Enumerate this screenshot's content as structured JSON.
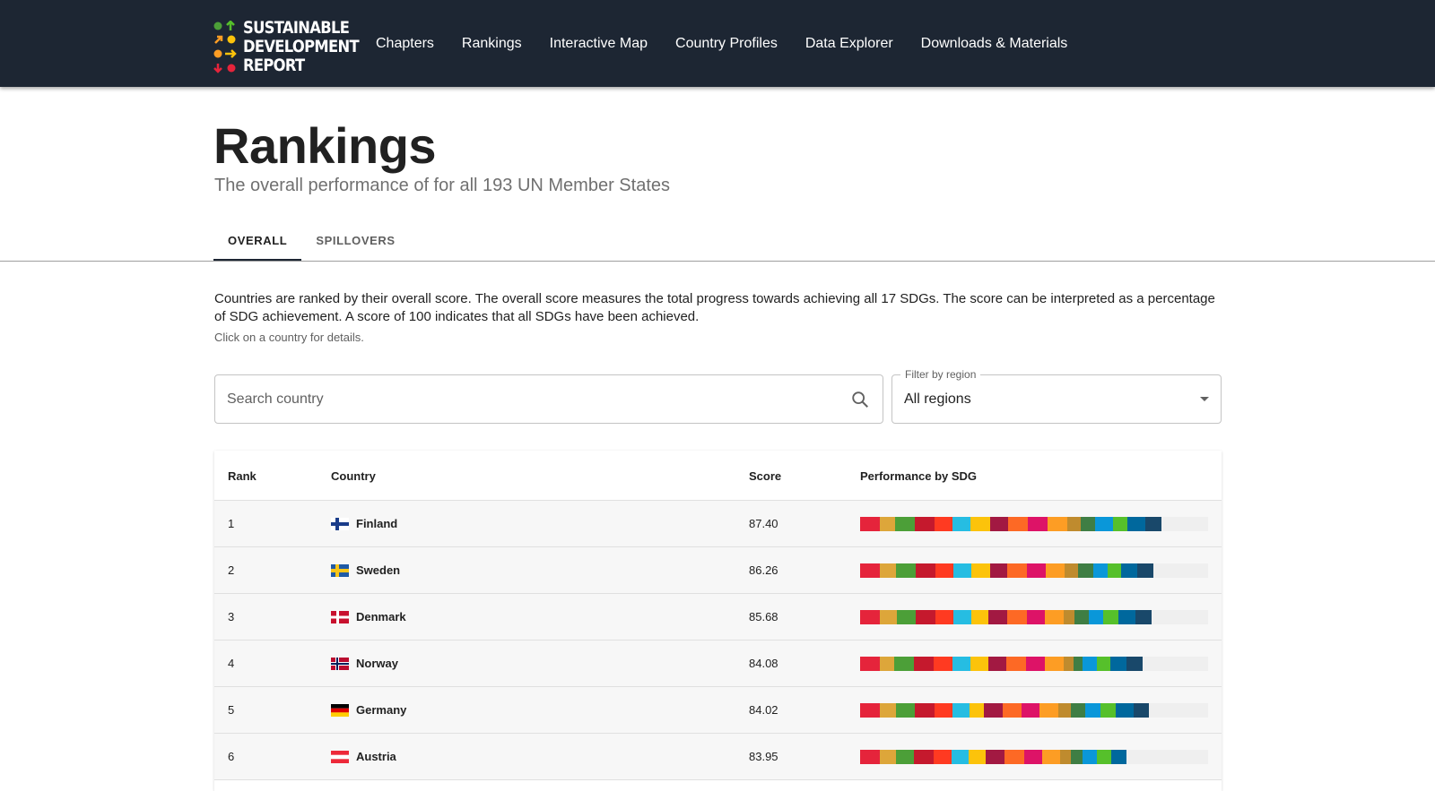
{
  "header": {
    "logo": {
      "line1": "SUSTAINABLE",
      "line2": "DEVELOPMENT",
      "line3": "REPORT"
    },
    "nav": [
      "Chapters",
      "Rankings",
      "Interactive Map",
      "Country Profiles",
      "Data Explorer",
      "Downloads & Materials"
    ]
  },
  "page": {
    "title": "Rankings",
    "subtitle": "The overall performance of for all 193 UN Member States"
  },
  "tabs": [
    {
      "label": "OVERALL",
      "active": true
    },
    {
      "label": "SPILLOVERS",
      "active": false
    }
  ],
  "description": "Countries are ranked by their overall score. The overall score measures the total progress towards achieving all 17 SDGs. The score can be interpreted as a percentage of SDG achievement. A score of 100 indicates that all SDGs have been achieved.",
  "hint": "Click on a country for details.",
  "search": {
    "placeholder": "Search country"
  },
  "filter": {
    "label": "Filter by region",
    "value": "All regions"
  },
  "table": {
    "headers": {
      "rank": "Rank",
      "country": "Country",
      "score": "Score",
      "performance": "Performance by SDG"
    },
    "rows": [
      {
        "rank": "1",
        "country": "Finland",
        "score": "87.40"
      },
      {
        "rank": "2",
        "country": "Sweden",
        "score": "86.26"
      },
      {
        "rank": "3",
        "country": "Denmark",
        "score": "85.68"
      },
      {
        "rank": "4",
        "country": "Norway",
        "score": "84.08"
      },
      {
        "rank": "5",
        "country": "Germany",
        "score": "84.02"
      },
      {
        "rank": "6",
        "country": "Austria",
        "score": "83.95"
      }
    ]
  },
  "sdg_colors": [
    "#e5243b",
    "#dda63a",
    "#4c9f38",
    "#c5192d",
    "#ff3a21",
    "#26bde2",
    "#fcc30b",
    "#a21942",
    "#fd6925",
    "#dd1367",
    "#fd9d24",
    "#bf8b2e",
    "#3f7e44",
    "#0a97d9",
    "#56c02b",
    "#00689d",
    "#19486a"
  ],
  "colors": {
    "header_bg": "#1d2633",
    "accent": "#1d2633"
  }
}
